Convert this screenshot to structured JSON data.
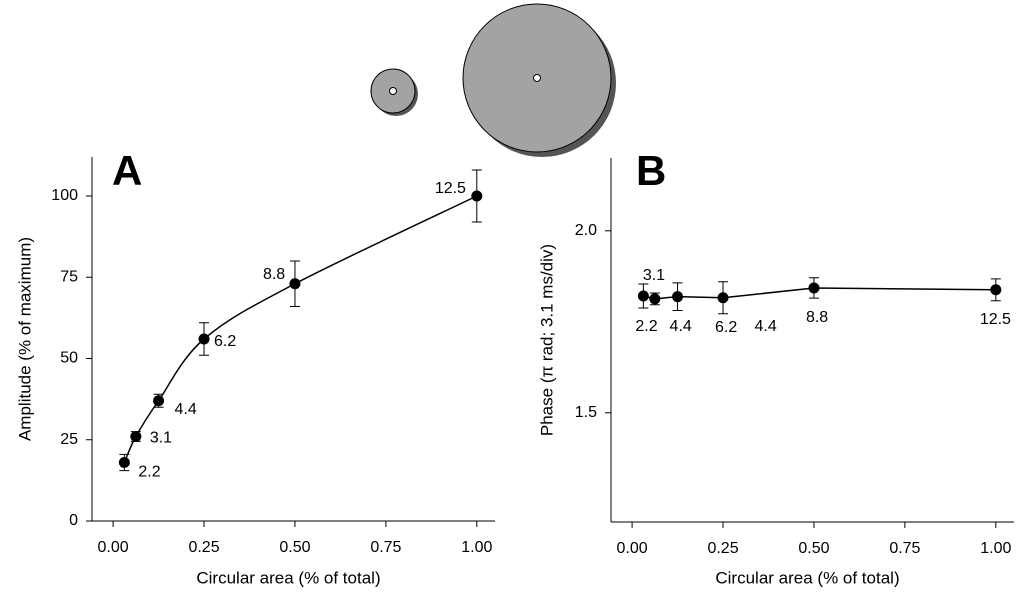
{
  "chart_data": [
    {
      "type": "line",
      "panel_label": "A",
      "xlabel": "Circular area (% of total)",
      "ylabel": "Amplitude (% of maximum)",
      "x": [
        0.031,
        0.0625,
        0.125,
        0.25,
        0.5,
        1.0
      ],
      "series": [
        {
          "color": "#000000",
          "values": [
            18,
            26,
            37,
            56,
            73,
            100
          ],
          "errors": [
            2.5,
            1.5,
            2,
            5,
            7,
            8
          ]
        }
      ],
      "point_labels": [
        "2.2",
        "3.1",
        "4.4",
        "6.2",
        "8.8",
        "12.5"
      ],
      "xlim": [
        -0.058,
        1.05
      ],
      "ylim": [
        0,
        112
      ],
      "xticks": [
        {
          "value": 0,
          "label": "0.00"
        },
        {
          "value": 0.25,
          "label": "0.25"
        },
        {
          "value": 0.5,
          "label": "0.50"
        },
        {
          "value": 0.75,
          "label": "0.75"
        },
        {
          "value": 1,
          "label": "1.00"
        }
      ],
      "yticks": [
        0,
        25,
        50,
        75,
        100
      ]
    },
    {
      "type": "line",
      "panel_label": "B",
      "xlabel": "Circular area (% of total)",
      "ylabel": "Phase (π rad; 3.1 ms/div)",
      "x": [
        0.031,
        0.0625,
        0.125,
        0.25,
        0.5,
        1.0
      ],
      "series": [
        {
          "color": "#000000",
          "values": [
            1.821,
            1.813,
            1.819,
            1.816,
            1.843,
            1.838
          ],
          "errors": [
            0.033,
            0.016,
            0.038,
            0.044,
            0.028,
            0.03
          ]
        }
      ],
      "point_labels": [
        "2.2",
        "3.1",
        "4.4",
        "6.2",
        "8.8",
        "12.5"
      ],
      "annotations": [
        "4.4"
      ],
      "xlim": [
        -0.058,
        1.05
      ],
      "ylim": [
        1.2,
        2.2
      ],
      "xticks": [
        {
          "value": 0,
          "label": "0.00"
        },
        {
          "value": 0.25,
          "label": "0.25"
        },
        {
          "value": 0.5,
          "label": "0.50"
        },
        {
          "value": 0.75,
          "label": "0.75"
        },
        {
          "value": 1,
          "label": "1.00"
        }
      ],
      "yticks": [
        {
          "value": 1.5,
          "label": "1.5"
        },
        {
          "value": 2,
          "label": "2.0"
        }
      ]
    }
  ]
}
